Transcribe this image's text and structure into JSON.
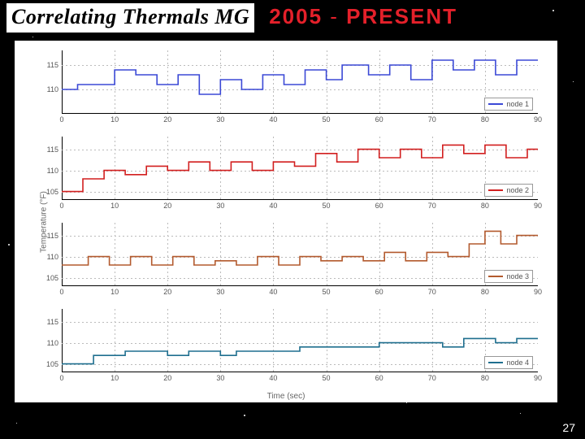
{
  "slide": {
    "title": "Correlating Thermals MG",
    "era_year": "2005",
    "era_sep": " - ",
    "era_word": "PRESENT",
    "page_number": "27",
    "background_color": "#000000"
  },
  "chart": {
    "panel_background": "#ffffff",
    "ylabel": "Temperature (°F)",
    "xlabel": "Time (sec)",
    "grid_color": "#bbbbbb",
    "axis_color": "#000000",
    "tick_fontsize": 9,
    "label_fontsize": 10,
    "xlim": [
      0,
      90
    ],
    "xtick_step": 10,
    "xticks": [
      "0",
      "10",
      "20",
      "30",
      "40",
      "50",
      "60",
      "70",
      "80",
      "90"
    ],
    "subplots": [
      {
        "legend": "node 1",
        "color": "#3b49d6",
        "ylim": [
          105,
          118
        ],
        "yticks": [
          "115",
          "110"
        ],
        "ytick_vals": [
          115,
          110
        ],
        "line_width": 1.6,
        "points": [
          [
            0,
            110
          ],
          [
            3,
            110
          ],
          [
            3,
            111
          ],
          [
            10,
            111
          ],
          [
            10,
            114
          ],
          [
            14,
            114
          ],
          [
            14,
            113
          ],
          [
            18,
            113
          ],
          [
            18,
            111
          ],
          [
            22,
            111
          ],
          [
            22,
            113
          ],
          [
            26,
            113
          ],
          [
            26,
            109
          ],
          [
            30,
            109
          ],
          [
            30,
            112
          ],
          [
            34,
            112
          ],
          [
            34,
            110
          ],
          [
            38,
            110
          ],
          [
            38,
            113
          ],
          [
            42,
            113
          ],
          [
            42,
            111
          ],
          [
            46,
            111
          ],
          [
            46,
            114
          ],
          [
            50,
            114
          ],
          [
            50,
            112
          ],
          [
            53,
            112
          ],
          [
            53,
            115
          ],
          [
            58,
            115
          ],
          [
            58,
            113
          ],
          [
            62,
            113
          ],
          [
            62,
            115
          ],
          [
            66,
            115
          ],
          [
            66,
            112
          ],
          [
            70,
            112
          ],
          [
            70,
            116
          ],
          [
            74,
            116
          ],
          [
            74,
            114
          ],
          [
            78,
            114
          ],
          [
            78,
            116
          ],
          [
            82,
            116
          ],
          [
            82,
            113
          ],
          [
            86,
            113
          ],
          [
            86,
            116
          ],
          [
            90,
            116
          ]
        ]
      },
      {
        "legend": "node 2",
        "color": "#d21f1f",
        "ylim": [
          103,
          118
        ],
        "yticks": [
          "115",
          "110",
          "105"
        ],
        "ytick_vals": [
          115,
          110,
          105
        ],
        "line_width": 1.6,
        "points": [
          [
            0,
            105
          ],
          [
            4,
            105
          ],
          [
            4,
            108
          ],
          [
            8,
            108
          ],
          [
            8,
            110
          ],
          [
            12,
            110
          ],
          [
            12,
            109
          ],
          [
            16,
            109
          ],
          [
            16,
            111
          ],
          [
            20,
            111
          ],
          [
            20,
            110
          ],
          [
            24,
            110
          ],
          [
            24,
            112
          ],
          [
            28,
            112
          ],
          [
            28,
            110
          ],
          [
            32,
            110
          ],
          [
            32,
            112
          ],
          [
            36,
            112
          ],
          [
            36,
            110
          ],
          [
            40,
            110
          ],
          [
            40,
            112
          ],
          [
            44,
            112
          ],
          [
            44,
            111
          ],
          [
            48,
            111
          ],
          [
            48,
            114
          ],
          [
            52,
            114
          ],
          [
            52,
            112
          ],
          [
            56,
            112
          ],
          [
            56,
            115
          ],
          [
            60,
            115
          ],
          [
            60,
            113
          ],
          [
            64,
            113
          ],
          [
            64,
            115
          ],
          [
            68,
            115
          ],
          [
            68,
            113
          ],
          [
            72,
            113
          ],
          [
            72,
            116
          ],
          [
            76,
            116
          ],
          [
            76,
            114
          ],
          [
            80,
            114
          ],
          [
            80,
            116
          ],
          [
            84,
            116
          ],
          [
            84,
            113
          ],
          [
            88,
            113
          ],
          [
            88,
            115
          ],
          [
            90,
            115
          ]
        ]
      },
      {
        "legend": "node 3",
        "color": "#b35a2e",
        "ylim": [
          103,
          118
        ],
        "yticks": [
          "115",
          "110",
          "105"
        ],
        "ytick_vals": [
          115,
          110,
          105
        ],
        "line_width": 1.6,
        "points": [
          [
            0,
            108
          ],
          [
            5,
            108
          ],
          [
            5,
            110
          ],
          [
            9,
            110
          ],
          [
            9,
            108
          ],
          [
            13,
            108
          ],
          [
            13,
            110
          ],
          [
            17,
            110
          ],
          [
            17,
            108
          ],
          [
            21,
            108
          ],
          [
            21,
            110
          ],
          [
            25,
            110
          ],
          [
            25,
            108
          ],
          [
            29,
            108
          ],
          [
            29,
            109
          ],
          [
            33,
            109
          ],
          [
            33,
            108
          ],
          [
            37,
            108
          ],
          [
            37,
            110
          ],
          [
            41,
            110
          ],
          [
            41,
            108
          ],
          [
            45,
            108
          ],
          [
            45,
            110
          ],
          [
            49,
            110
          ],
          [
            49,
            109
          ],
          [
            53,
            109
          ],
          [
            53,
            110
          ],
          [
            57,
            110
          ],
          [
            57,
            109
          ],
          [
            61,
            109
          ],
          [
            61,
            111
          ],
          [
            65,
            111
          ],
          [
            65,
            109
          ],
          [
            69,
            109
          ],
          [
            69,
            111
          ],
          [
            73,
            111
          ],
          [
            73,
            110
          ],
          [
            77,
            110
          ],
          [
            77,
            113
          ],
          [
            80,
            113
          ],
          [
            80,
            116
          ],
          [
            83,
            116
          ],
          [
            83,
            113
          ],
          [
            86,
            113
          ],
          [
            86,
            115
          ],
          [
            90,
            115
          ]
        ]
      },
      {
        "legend": "node 4",
        "color": "#1f6f8f",
        "ylim": [
          103,
          118
        ],
        "yticks": [
          "115",
          "110",
          "105"
        ],
        "ytick_vals": [
          115,
          110,
          105
        ],
        "line_width": 1.6,
        "points": [
          [
            0,
            105
          ],
          [
            6,
            105
          ],
          [
            6,
            107
          ],
          [
            12,
            107
          ],
          [
            12,
            108
          ],
          [
            20,
            108
          ],
          [
            20,
            107
          ],
          [
            24,
            107
          ],
          [
            24,
            108
          ],
          [
            30,
            108
          ],
          [
            30,
            107
          ],
          [
            33,
            107
          ],
          [
            33,
            108
          ],
          [
            45,
            108
          ],
          [
            45,
            109
          ],
          [
            60,
            109
          ],
          [
            60,
            110
          ],
          [
            72,
            110
          ],
          [
            72,
            109
          ],
          [
            76,
            109
          ],
          [
            76,
            111
          ],
          [
            82,
            111
          ],
          [
            82,
            110
          ],
          [
            86,
            110
          ],
          [
            86,
            111
          ],
          [
            90,
            111
          ]
        ]
      }
    ]
  }
}
